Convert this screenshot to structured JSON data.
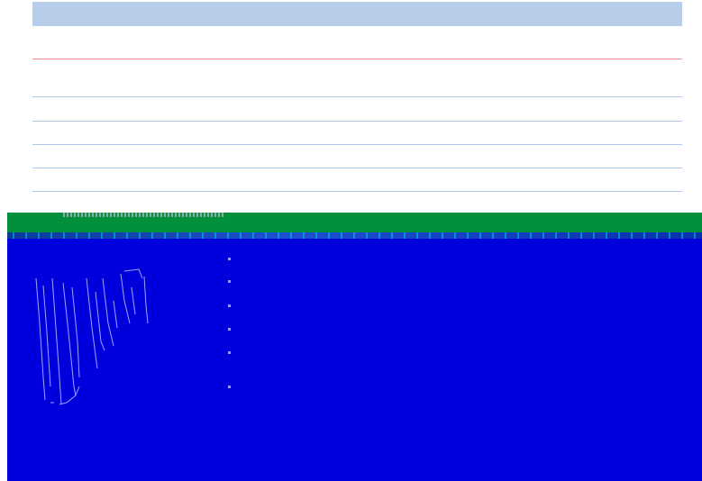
{
  "colors": {
    "header_bar": "#b8cdea",
    "accent_rule": "#f08a8a",
    "line_rule": "#a9c9ef",
    "green_band": "#008f3a",
    "blue_panel": "#0000dd",
    "glyph_stroke": "#9aa8ff"
  },
  "layout_rows": {
    "red_rule_count": 1,
    "blue_rule_count": 5,
    "marker_count": 6
  },
  "icons": {
    "glyph_art": "distorted-glyph-icon",
    "marker": "marker-dot-icon"
  }
}
